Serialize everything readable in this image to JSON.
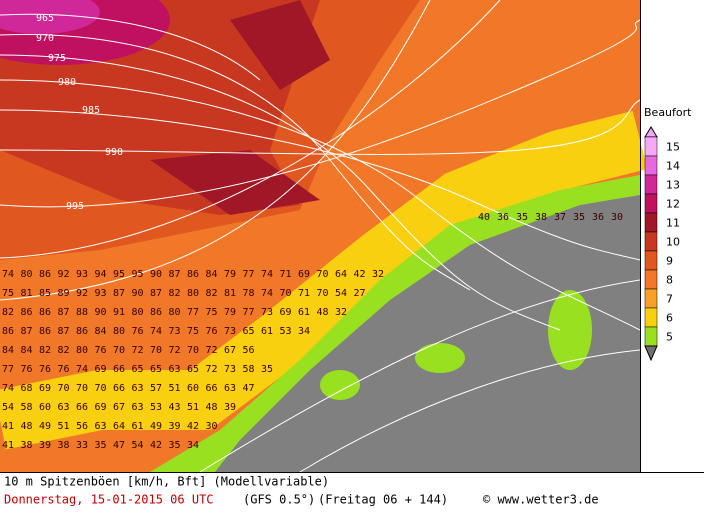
{
  "map": {
    "isobar_labels": [
      "965",
      "970",
      "975",
      "980",
      "985",
      "990",
      "995"
    ],
    "rows": [
      {
        "values": [
          74,
          80,
          86,
          92,
          93,
          94,
          95,
          95,
          90,
          87,
          86,
          84,
          79,
          77,
          74,
          71,
          69,
          70,
          64,
          42,
          32
        ]
      },
      {
        "values": [
          75,
          81,
          85,
          89,
          92,
          93,
          87,
          90,
          87,
          82,
          80,
          82,
          81,
          78,
          74,
          70,
          71,
          70,
          54,
          27
        ]
      },
      {
        "values": [
          82,
          86,
          86,
          87,
          88,
          90,
          91,
          80,
          86,
          80,
          77,
          75,
          79,
          77,
          73,
          69,
          61,
          48,
          32
        ]
      },
      {
        "values": [
          86,
          87,
          86,
          87,
          86,
          84,
          80,
          76,
          74,
          73,
          75,
          76,
          73,
          65,
          61,
          53,
          34
        ]
      },
      {
        "values": [
          84,
          84,
          82,
          82,
          80,
          76,
          70,
          72,
          70,
          72,
          70,
          72,
          67,
          56
        ]
      },
      {
        "values": [
          77,
          76,
          76,
          76,
          74,
          69,
          66,
          65,
          65,
          63,
          65,
          72,
          73,
          58,
          35
        ]
      },
      {
        "values": [
          74,
          68,
          69,
          70,
          70,
          70,
          66,
          63,
          57,
          51,
          60,
          66,
          63,
          47
        ]
      },
      {
        "values": [
          54,
          58,
          60,
          63,
          66,
          69,
          67,
          63,
          53,
          43,
          51,
          48,
          39
        ]
      },
      {
        "values": [
          41,
          48,
          49,
          51,
          56,
          63,
          64,
          61,
          49,
          39,
          42,
          30
        ]
      },
      {
        "values": [
          41,
          38,
          39,
          38,
          33,
          35,
          47,
          54,
          42,
          35,
          34
        ]
      }
    ],
    "east_values": [
      40,
      36,
      35,
      38,
      37,
      35,
      36,
      30
    ]
  },
  "legend": {
    "title": "Beaufort",
    "levels": [
      {
        "label": "15",
        "color": "#f8a8f8"
      },
      {
        "label": "14",
        "color": "#e868e0"
      },
      {
        "label": "13",
        "color": "#d02898"
      },
      {
        "label": "12",
        "color": "#c01060"
      },
      {
        "label": "11",
        "color": "#a01828"
      },
      {
        "label": "10",
        "color": "#c83820"
      },
      {
        "label": "9",
        "color": "#e05820"
      },
      {
        "label": "8",
        "color": "#f07828"
      },
      {
        "label": "7",
        "color": "#f8a028"
      },
      {
        "label": "6",
        "color": "#f8d010"
      },
      {
        "label": "5",
        "color": "#98e020"
      }
    ]
  },
  "footer": {
    "line1": "10 m Spitzenböen [km/h, Bft] (Modellvariable)",
    "date": "Donnerstag, 15-01-2015  06 UTC",
    "model": "(GFS 0.5°)",
    "run": "(Freitag 06 + 144)",
    "credit": "© www.wetter3.de"
  }
}
